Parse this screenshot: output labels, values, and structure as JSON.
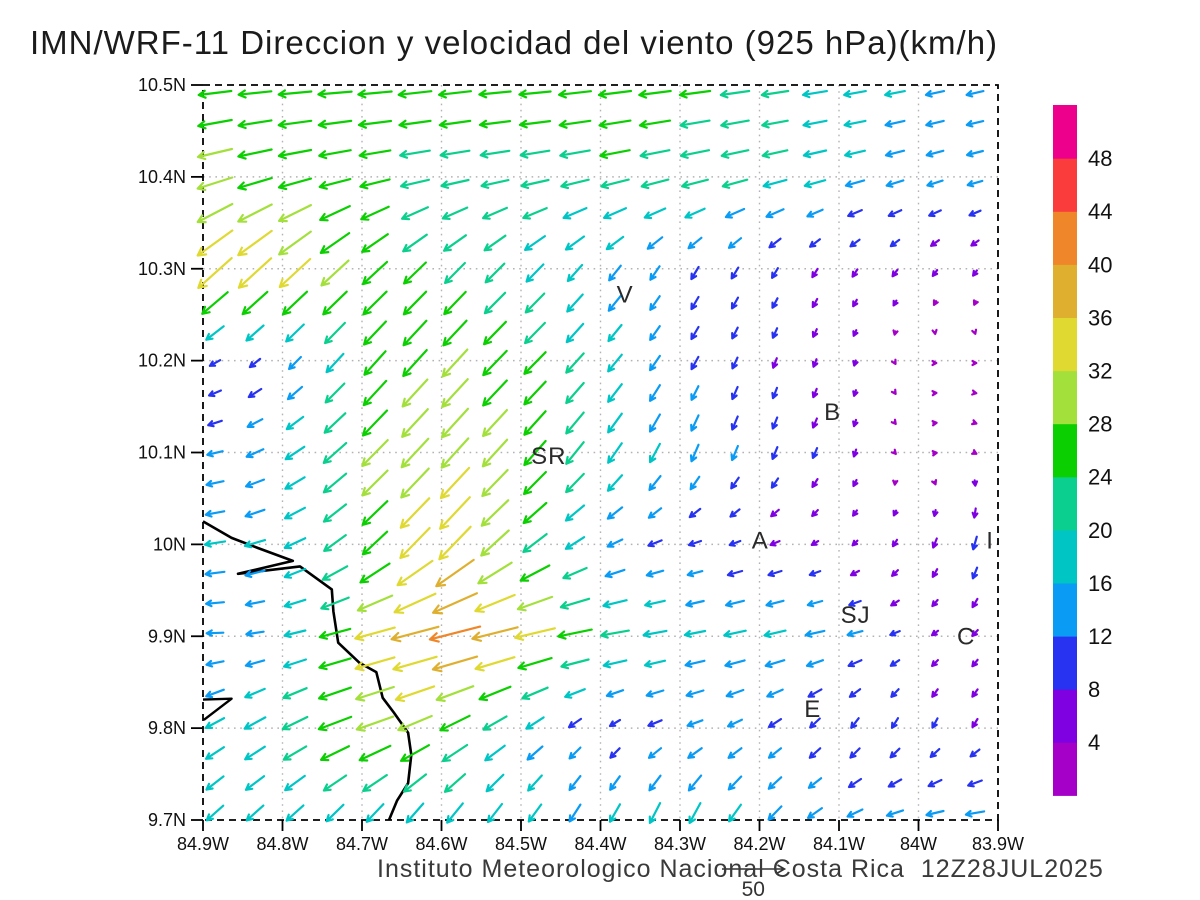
{
  "title": "IMN/WRF-11 Direccion y velocidad del viento (925 hPa)(km/h)",
  "footer": {
    "text": "Instituto Meteorologico Nacional Costa Rica  12Z28JUL2025",
    "ref_label": "50",
    "ref_value": 50
  },
  "chart_data": {
    "type": "quiver",
    "title": "IMN/WRF-11 Direccion y velocidad del viento (925 hPa)(km/h)",
    "units": "km/h",
    "pressure_level": "925 hPa",
    "x_ticks": [
      "84.9W",
      "84.8W",
      "84.7W",
      "84.6W",
      "84.5W",
      "84.4W",
      "84.3W",
      "84.2W",
      "84.1W",
      "84W",
      "83.9W"
    ],
    "y_ticks": [
      "10.5N",
      "10.4N",
      "10.3N",
      "10.2N",
      "10.1N",
      "10N",
      "9.9N",
      "9.8N",
      "9.7N"
    ],
    "lon_range": [
      -84.9,
      -83.9
    ],
    "lat_range": [
      9.7,
      10.5
    ],
    "grid_on": true,
    "colorbar": {
      "levels": [
        4,
        8,
        12,
        16,
        20,
        24,
        28,
        32,
        36,
        40,
        44,
        48
      ],
      "colors_bottom_to_top": [
        "#A500C8",
        "#7F00E0",
        "#2733F0",
        "#0A9BF5",
        "#00C5C5",
        "#0BCF8E",
        "#0BCF00",
        "#A3E03C",
        "#DFD931",
        "#DFB030",
        "#EF8629",
        "#FA3C3C",
        "#EC008C"
      ]
    },
    "grid": {
      "lons": [
        -84.9,
        -84.8,
        -84.7,
        -84.6,
        -84.5,
        -84.4,
        -84.3,
        -84.2,
        -84.1,
        -84.0,
        -83.9
      ],
      "lats": [
        10.5,
        10.4,
        10.3,
        10.2,
        10.1,
        10.0,
        9.9,
        9.8,
        9.7
      ],
      "u": [
        [
          -26,
          -26,
          -27,
          -26,
          -25,
          -26,
          -25,
          -22,
          -18,
          -15,
          -13
        ],
        [
          -28,
          -26,
          -24,
          -22,
          -22,
          -23,
          -22,
          -20,
          -16,
          -13,
          -12
        ],
        [
          -28,
          -26,
          -20,
          -16,
          -14,
          -10,
          -6,
          -5,
          -4,
          -4,
          -3
        ],
        [
          -8,
          -8,
          -16,
          -20,
          -18,
          -12,
          -6,
          -3,
          -2,
          2,
          2
        ],
        [
          -12,
          -14,
          -20,
          -22,
          -18,
          -12,
          -6,
          -4,
          -3,
          3,
          2
        ],
        [
          -16,
          -16,
          -18,
          -26,
          -20,
          -12,
          -10,
          -8,
          -4,
          -3,
          -3
        ],
        [
          -13,
          -14,
          -30,
          -42,
          -34,
          -24,
          -16,
          -18,
          -14,
          -5,
          -4
        ],
        [
          -14,
          -18,
          -30,
          -24,
          -14,
          -6,
          -12,
          -10,
          -6,
          -4,
          -4
        ],
        [
          -13,
          -13,
          -12,
          -12,
          -10,
          -8,
          -8,
          -10,
          -12,
          -14,
          -16
        ]
      ],
      "v": [
        [
          -3,
          -2,
          -2,
          -3,
          -2,
          -3,
          -3,
          -3,
          -3,
          -3,
          -3
        ],
        [
          -8,
          -6,
          -5,
          -4,
          -4,
          -5,
          -5,
          -5,
          -4,
          -4,
          -3
        ],
        [
          -25,
          -24,
          -18,
          -16,
          -14,
          -12,
          -10,
          -8,
          -6,
          -5,
          -4
        ],
        [
          -4,
          -8,
          -18,
          -22,
          -18,
          -14,
          -10,
          -8,
          -5,
          0,
          0
        ],
        [
          -2,
          -8,
          -20,
          -24,
          -20,
          -16,
          -14,
          -10,
          -7,
          1,
          -2
        ],
        [
          -2,
          -6,
          -16,
          -28,
          -16,
          -6,
          -3,
          -3,
          -3,
          -6,
          -12
        ],
        [
          0,
          -3,
          -8,
          -10,
          -8,
          -4,
          -3,
          -4,
          -3,
          -3,
          -5
        ],
        [
          -8,
          -10,
          -10,
          -12,
          -10,
          -5,
          -4,
          -6,
          -8,
          -8,
          -6
        ],
        [
          -12,
          -12,
          -14,
          -16,
          -14,
          -14,
          -18,
          -12,
          -6,
          -3,
          -2
        ]
      ]
    },
    "stations": [
      {
        "label": "V",
        "lon": -84.369,
        "lat": 10.272
      },
      {
        "label": "B",
        "lon": -84.108,
        "lat": 10.144
      },
      {
        "label": "SR",
        "lon": -84.465,
        "lat": 10.096
      },
      {
        "label": "A",
        "lon": -84.199,
        "lat": 10.004
      },
      {
        "label": "SJ",
        "lon": -84.079,
        "lat": 9.923
      },
      {
        "label": "C",
        "lon": -83.94,
        "lat": 9.9
      },
      {
        "label": "E",
        "lon": -84.133,
        "lat": 9.821
      },
      {
        "label": "I",
        "lon": -83.91,
        "lat": 10.004
      }
    ],
    "coastline": [
      [
        -84.9,
        10.025
      ],
      [
        -84.864,
        10.007
      ],
      [
        -84.831,
        9.996
      ],
      [
        -84.787,
        9.982
      ],
      [
        -84.856,
        9.968
      ],
      [
        -84.778,
        9.976
      ],
      [
        -84.738,
        9.951
      ],
      [
        -84.736,
        9.927
      ],
      [
        -84.73,
        9.893
      ],
      [
        -84.703,
        9.871
      ],
      [
        -84.682,
        9.861
      ],
      [
        -84.674,
        9.833
      ],
      [
        -84.66,
        9.817
      ],
      [
        -84.642,
        9.795
      ],
      [
        -84.638,
        9.771
      ],
      [
        -84.642,
        9.74
      ],
      [
        -84.656,
        9.721
      ],
      [
        -84.666,
        9.7
      ]
    ],
    "coast_spur": [
      [
        -84.9,
        9.831
      ],
      [
        -84.864,
        9.832
      ],
      [
        -84.899,
        9.809
      ]
    ]
  }
}
